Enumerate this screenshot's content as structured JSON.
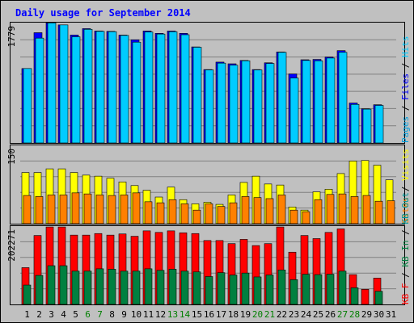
{
  "title": "Daily usage for September 2014",
  "colors": {
    "background": "#c0c0c0",
    "frame": "#000000",
    "title_text": "#0000ff",
    "weekday_label": "#000000",
    "weekend_label": "#007f00",
    "hits": "#00ccff",
    "files": "#0000ff",
    "pages": "#00a0e0",
    "visits": "#ffff00",
    "sites": "#ff8000",
    "kb_f": "#ff0000",
    "kb_in": "#008040",
    "kb_out": "#009999"
  },
  "chart_data": [
    {
      "type": "bar",
      "panel": "hits-files-pages",
      "y_axis_label": "1779",
      "right_labels": [
        "Pages",
        "Files",
        "Hits"
      ],
      "categories": [
        "1",
        "2",
        "3",
        "4",
        "5",
        "6",
        "7",
        "8",
        "9",
        "10",
        "11",
        "12",
        "13",
        "14",
        "15",
        "16",
        "17",
        "18",
        "19",
        "20",
        "21",
        "22",
        "23",
        "24",
        "25",
        "26",
        "27",
        "28",
        "29",
        "30",
        "31"
      ],
      "weekend_days": [
        "6",
        "7",
        "13",
        "14",
        "20",
        "21",
        "27",
        "28"
      ],
      "ylim": [
        0,
        1779
      ],
      "series": [
        {
          "name": "Hits",
          "values": [
            1100,
            1630,
            1775,
            1745,
            1595,
            1690,
            1655,
            1650,
            1595,
            1525,
            1655,
            1620,
            1655,
            1620,
            1420,
            1085,
            1195,
            1170,
            1220,
            1085,
            1185,
            1345,
            1020,
            1230,
            1235,
            1270,
            1365,
            590,
            505,
            565,
            0
          ]
        },
        {
          "name": "Files",
          "values": [
            1100,
            1630,
            1775,
            1745,
            1595,
            1690,
            1655,
            1650,
            1595,
            1525,
            1655,
            1620,
            1655,
            1620,
            1420,
            1085,
            1195,
            1170,
            1220,
            1085,
            1185,
            1345,
            1020,
            1230,
            1235,
            1270,
            1365,
            590,
            505,
            565,
            0
          ]
        },
        {
          "name": "Pages",
          "values": [
            1100,
            1550,
            1775,
            1745,
            1570,
            1680,
            1650,
            1645,
            1590,
            1490,
            1640,
            1610,
            1645,
            1600,
            1415,
            1080,
            1180,
            1150,
            1215,
            1080,
            1175,
            1340,
            960,
            1220,
            1215,
            1255,
            1340,
            570,
            500,
            555,
            0
          ]
        }
      ]
    },
    {
      "type": "bar",
      "panel": "visits-sites",
      "y_axis_label": "150",
      "right_labels": [
        "Sites",
        "Visits"
      ],
      "categories": [
        "1",
        "2",
        "3",
        "4",
        "5",
        "6",
        "7",
        "8",
        "9",
        "10",
        "11",
        "12",
        "13",
        "14",
        "15",
        "16",
        "17",
        "18",
        "19",
        "20",
        "21",
        "22",
        "23",
        "24",
        "25",
        "26",
        "27",
        "28",
        "29",
        "30",
        "31"
      ],
      "ylim": [
        0,
        150
      ],
      "series": [
        {
          "name": "Visits",
          "values": [
            98,
            98,
            105,
            105,
            98,
            93,
            91,
            87,
            80,
            73,
            64,
            51,
            70,
            46,
            38,
            41,
            37,
            55,
            79,
            91,
            76,
            74,
            32,
            26,
            61,
            66,
            96,
            120,
            121,
            112,
            84
          ]
        },
        {
          "name": "Sites",
          "values": [
            54,
            52,
            55,
            55,
            59,
            57,
            55,
            54,
            55,
            59,
            42,
            40,
            46,
            38,
            26,
            38,
            33,
            40,
            52,
            50,
            48,
            55,
            26,
            23,
            46,
            56,
            57,
            52,
            54,
            43,
            44
          ]
        }
      ]
    },
    {
      "type": "bar",
      "panel": "kbytes",
      "y_axis_label": "202271",
      "right_labels": [
        "KB F",
        "KB In",
        "KB Out"
      ],
      "categories": [
        "1",
        "2",
        "3",
        "4",
        "5",
        "6",
        "7",
        "8",
        "9",
        "10",
        "11",
        "12",
        "13",
        "14",
        "15",
        "16",
        "17",
        "18",
        "19",
        "20",
        "21",
        "22",
        "23",
        "24",
        "25",
        "26",
        "27",
        "28",
        "29",
        "30",
        "31"
      ],
      "ylim": [
        0,
        202271
      ],
      "series": [
        {
          "name": "KB F",
          "values": [
            95000,
            178000,
            200000,
            200000,
            179000,
            179000,
            183000,
            179000,
            182000,
            176000,
            190000,
            186000,
            190000,
            185000,
            183000,
            165000,
            165000,
            157000,
            168000,
            152000,
            157000,
            200000,
            135000,
            178000,
            170000,
            186000,
            195000,
            77000,
            39000,
            68000,
            0
          ]
        },
        {
          "name": "KB Out",
          "values": [
            50000,
            75000,
            100000,
            100000,
            86000,
            86000,
            92000,
            91000,
            86000,
            86000,
            92000,
            88000,
            91000,
            86000,
            84000,
            72000,
            82000,
            76000,
            81000,
            71000,
            76000,
            89000,
            64000,
            78000,
            77000,
            78000,
            86000,
            43000,
            0,
            34000,
            0
          ]
        },
        {
          "name": "KB In",
          "values": [
            50000,
            75000,
            100000,
            100000,
            86000,
            86000,
            92000,
            91000,
            86000,
            86000,
            92000,
            88000,
            91000,
            86000,
            84000,
            72000,
            82000,
            76000,
            81000,
            71000,
            76000,
            89000,
            64000,
            78000,
            77000,
            78000,
            86000,
            43000,
            0,
            34000,
            0
          ]
        }
      ]
    }
  ]
}
